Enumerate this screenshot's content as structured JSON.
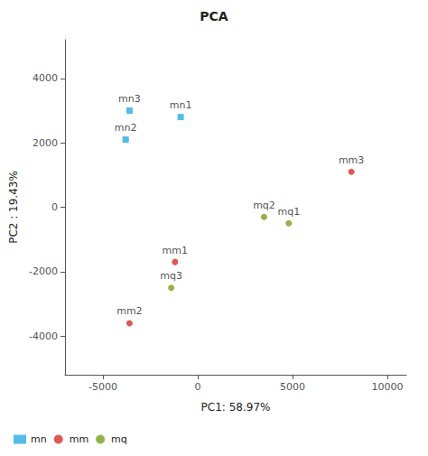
{
  "chart_data": {
    "type": "scatter",
    "title": "PCA",
    "xlabel": "PC1: 58.97%",
    "ylabel": "PC2 : 19.43%",
    "xlim": [
      -7000,
      11000
    ],
    "ylim": [
      -5200,
      5200
    ],
    "xticks": [
      -5000,
      0,
      5000,
      10000
    ],
    "yticks": [
      -4000,
      -2000,
      0,
      2000,
      4000
    ],
    "grid": false,
    "legend": "bottom",
    "series": [
      {
        "name": "mn",
        "color": "#29abe2",
        "marker": "square",
        "x": [
          -900,
          -3800,
          -3600
        ],
        "values": [
          2800,
          2100,
          3000
        ],
        "labels": [
          "mn1",
          "mn2",
          "mn3"
        ]
      },
      {
        "name": "mm",
        "color": "#d73027",
        "marker": "circle",
        "x": [
          -1200,
          -3600,
          8100
        ],
        "values": [
          -1700,
          -3600,
          1100
        ],
        "labels": [
          "mm1",
          "mm2",
          "mm3"
        ]
      },
      {
        "name": "mq",
        "color": "#7a9e1e",
        "marker": "circle",
        "x": [
          4800,
          3500,
          -1400
        ],
        "values": [
          -500,
          -300,
          -2500
        ],
        "labels": [
          "mq1",
          "mq2",
          "mq3"
        ]
      }
    ]
  }
}
